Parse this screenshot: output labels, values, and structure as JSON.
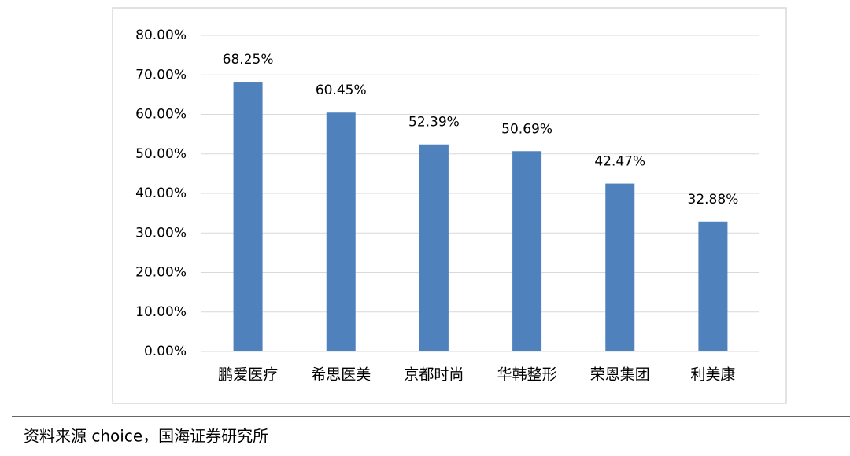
{
  "chart_data": {
    "type": "bar",
    "categories": [
      "鹏爱医疗",
      "希思医美",
      "京都时尚",
      "华韩整形",
      "荣恩集团",
      "利美康"
    ],
    "values": [
      68.25,
      60.45,
      52.39,
      50.69,
      42.47,
      32.88
    ],
    "value_labels": [
      "68.25%",
      "60.45%",
      "52.39%",
      "50.69%",
      "42.47%",
      "32.88%"
    ],
    "color": "#4f81bd",
    "ylim": [
      0,
      80
    ],
    "yticks": [
      {
        "value": 0,
        "label": "0.00%"
      },
      {
        "value": 10,
        "label": "10.00%"
      },
      {
        "value": 20,
        "label": "20.00%"
      },
      {
        "value": 30,
        "label": "30.00%"
      },
      {
        "value": 40,
        "label": "40.00%"
      },
      {
        "value": 50,
        "label": "50.00%"
      },
      {
        "value": 60,
        "label": "60.00%"
      },
      {
        "value": 70,
        "label": "70.00%"
      },
      {
        "value": 80,
        "label": "80.00%"
      }
    ],
    "grid": true,
    "source": "资料来源 choice，国海证券研究所"
  }
}
